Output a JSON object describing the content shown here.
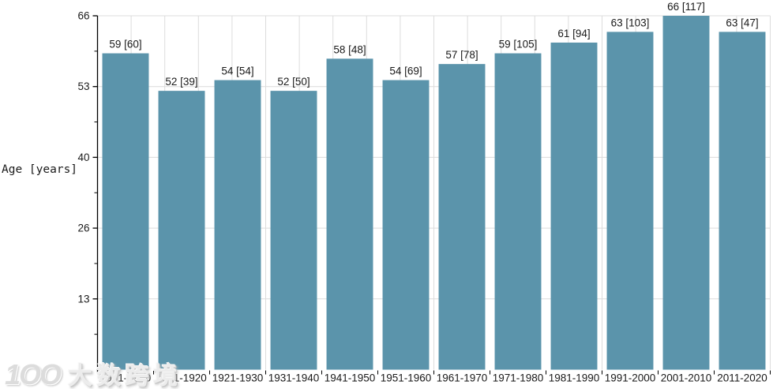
{
  "watermark": {
    "logo": "1OO",
    "brand": "大数跨境"
  },
  "chart_data": {
    "type": "bar",
    "title": "",
    "xlabel": "",
    "ylabel": "Age [years]",
    "categories": [
      "1901-1910",
      "1911-1920",
      "1921-1930",
      "1931-1940",
      "1941-1950",
      "1951-1960",
      "1961-1970",
      "1971-1980",
      "1981-1990",
      "1991-2000",
      "2001-2010",
      "2011-2020"
    ],
    "values": [
      59,
      52,
      54,
      52,
      58,
      54,
      57,
      59,
      61,
      63,
      66,
      63
    ],
    "bracket_counts": [
      60,
      39,
      54,
      50,
      48,
      69,
      78,
      105,
      94,
      103,
      117,
      47
    ],
    "bar_labels": [
      "59 [60]",
      "52 [39]",
      "54 [54]",
      "52 [50]",
      "58 [48]",
      "54 [69]",
      "57 [78]",
      "59 [105]",
      "61 [94]",
      "63 [103]",
      "66 [117]",
      "63 [47]"
    ],
    "ylim": [
      0,
      66
    ],
    "yticks": [
      {
        "value": 66.0,
        "label": "66"
      },
      {
        "value": 52.8,
        "label": "53"
      },
      {
        "value": 39.6,
        "label": "40"
      },
      {
        "value": 26.4,
        "label": "26"
      },
      {
        "value": 13.2,
        "label": "13"
      }
    ],
    "minor_yticks": [
      59.4,
      46.2,
      33.0,
      19.8,
      6.6
    ],
    "grid": true,
    "legend": "none",
    "vertical_grid_divisions": 20,
    "colors": {
      "bar": "#5b94ab",
      "grid": "#dcdcdc",
      "axis": "#000000",
      "text": "#1a1a1a"
    }
  }
}
